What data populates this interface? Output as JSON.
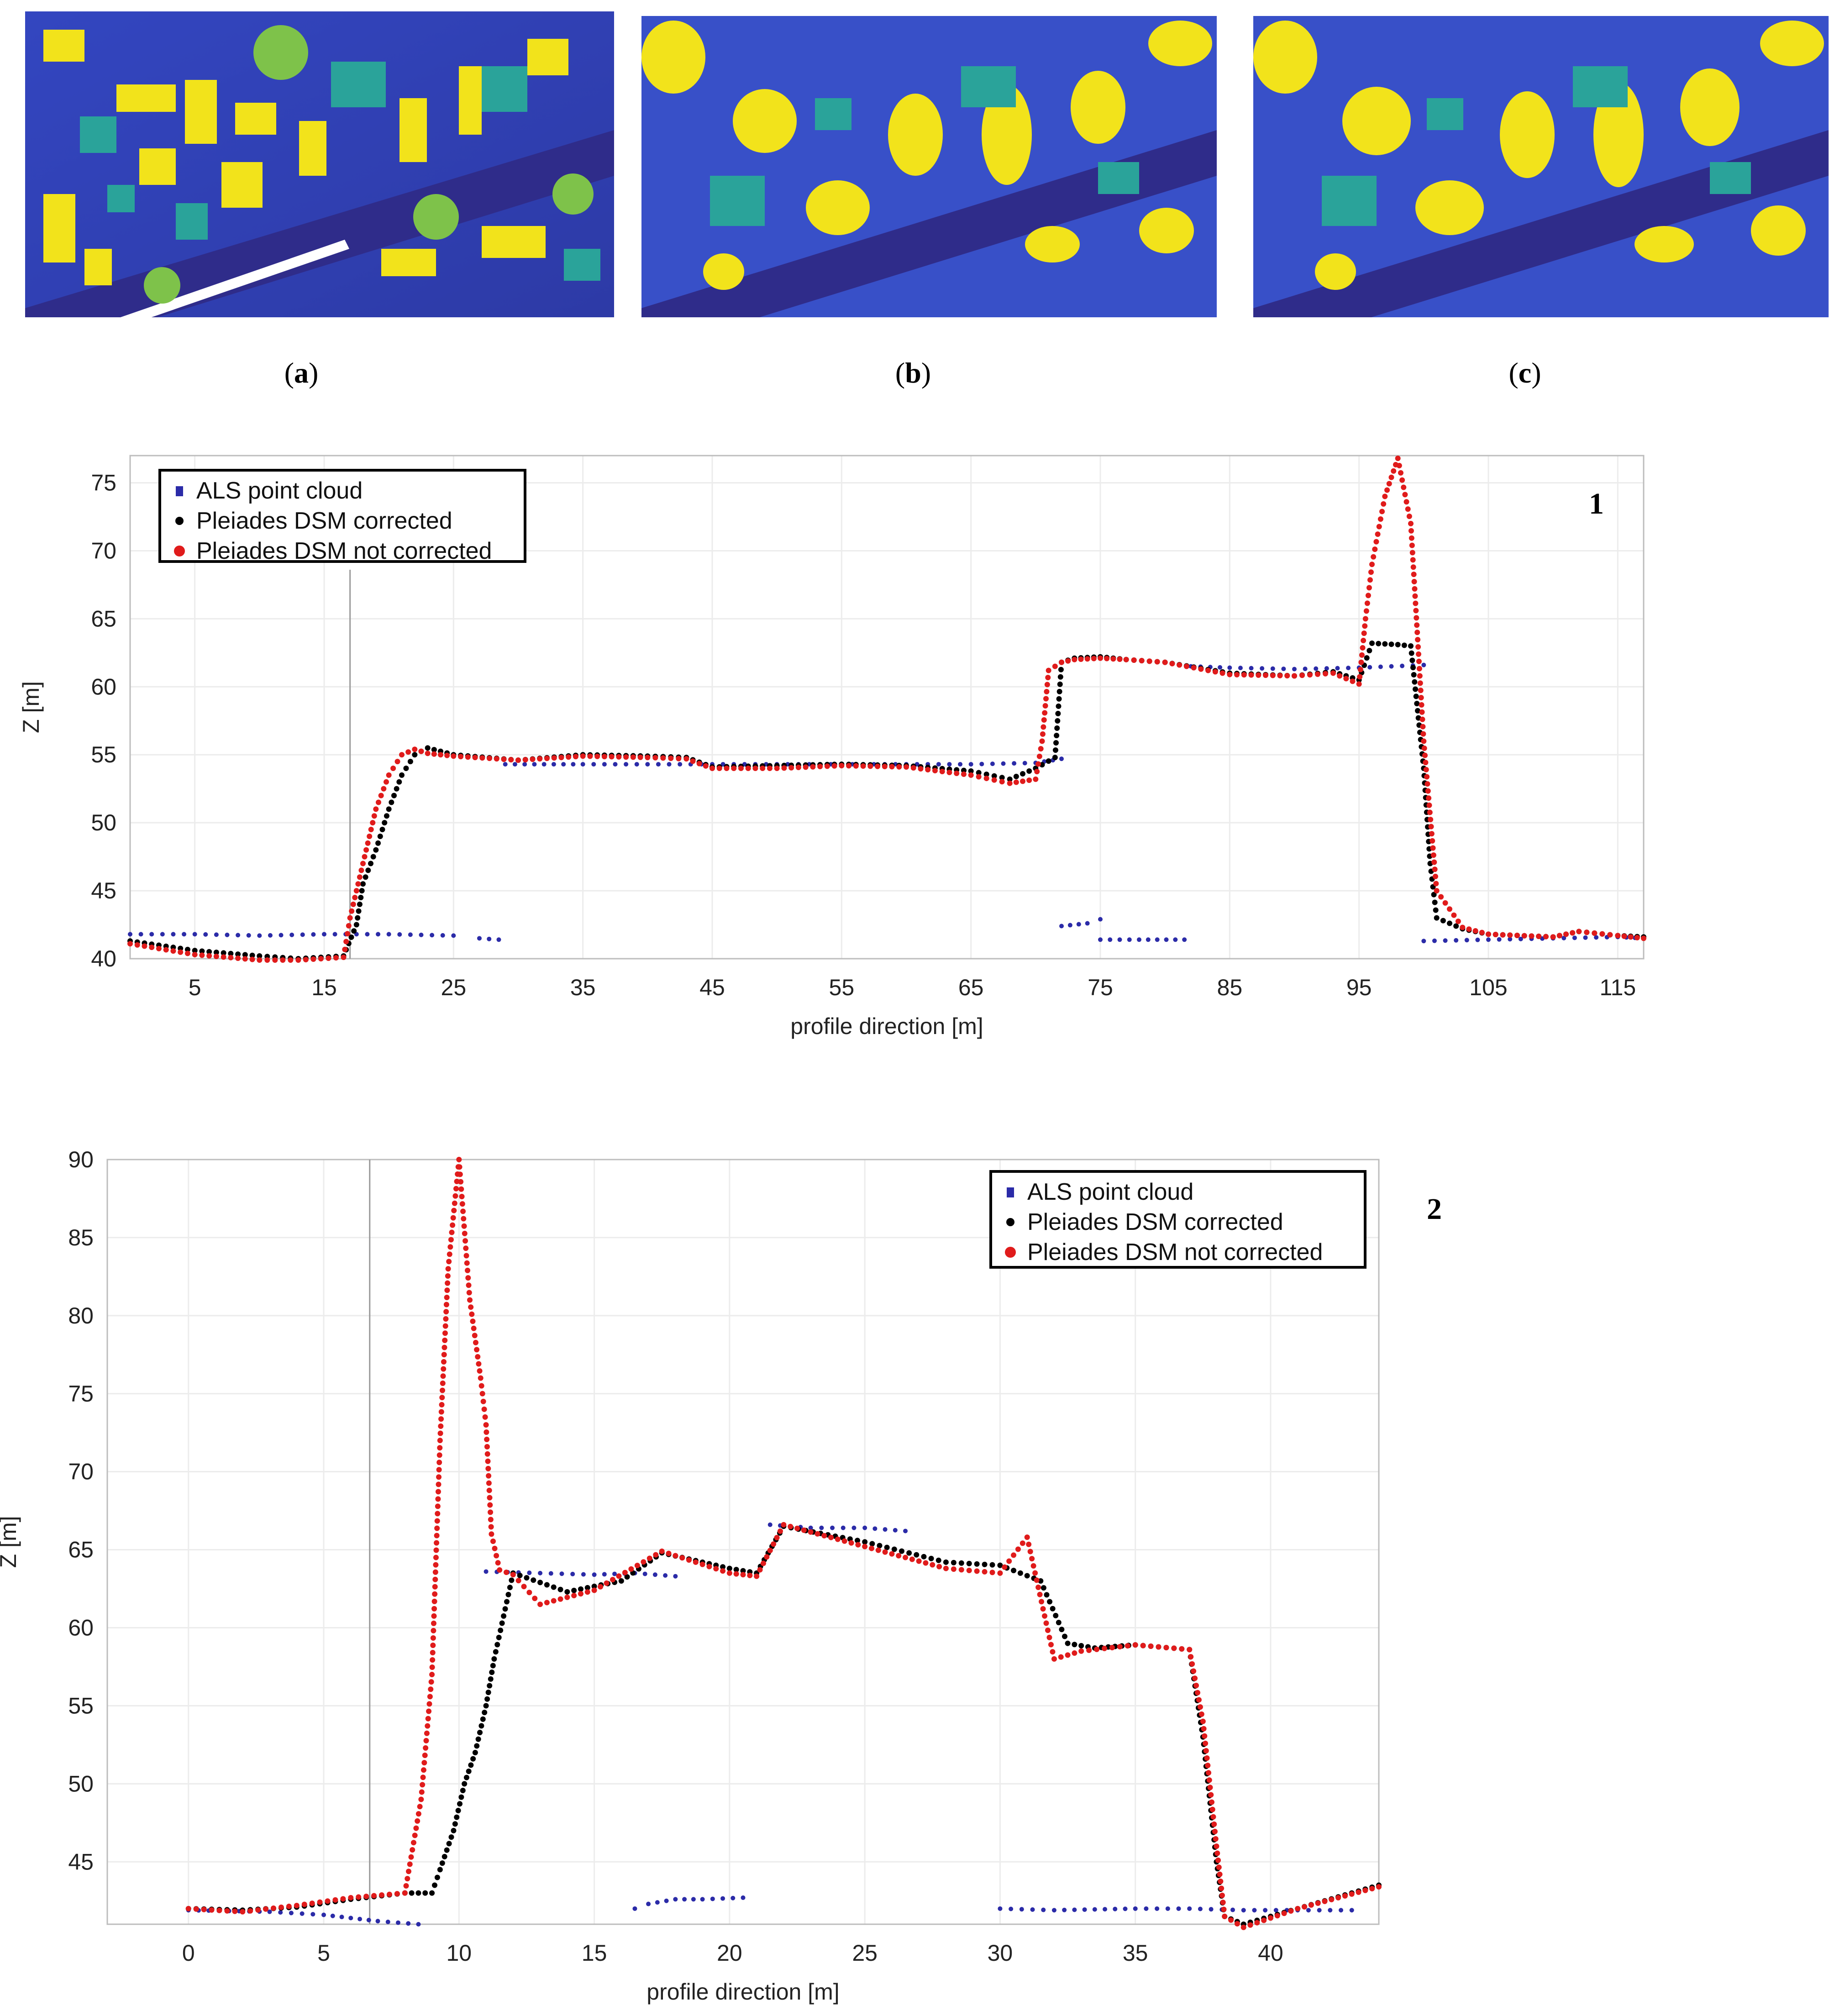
{
  "figure": {
    "panels": [
      {
        "id": "a",
        "label": "a",
        "description_type": "ALS point cloud map"
      },
      {
        "id": "b",
        "label": "b",
        "description_type": "Pleiades DSM corrected"
      },
      {
        "id": "c",
        "label": "c",
        "description_type": "Pleiades DSM not corrected"
      }
    ],
    "colors": {
      "map_low": "#3b3fa8",
      "map_mid": "#2a9fa0",
      "map_high": "#f2e31b",
      "als": "#2b2ba8",
      "corrected": "#000000",
      "not_corrected": "#e01b1b",
      "grid": "#e6e6e6"
    }
  },
  "chart_data": [
    {
      "id": "1",
      "type": "scatter",
      "panel_label": "1",
      "xlabel": "profile direction [m]",
      "ylabel": "Z [m]",
      "xlim": [
        0,
        117
      ],
      "ylim": [
        40,
        77
      ],
      "xticks": [
        5,
        15,
        25,
        35,
        45,
        55,
        65,
        75,
        85,
        95,
        105,
        115
      ],
      "yticks": [
        40,
        45,
        50,
        55,
        60,
        65,
        70,
        75
      ],
      "legend_position": "top-left",
      "vline_x": 17,
      "legend": [
        "ALS point cloud",
        "Pleiades DSM corrected",
        "Pleiades DSM not corrected"
      ],
      "series": [
        {
          "name": "ALS point cloud",
          "color": "#2b2ba8",
          "segments": [
            {
              "x": [
                0,
                5,
                10,
                15,
                20,
                25
              ],
              "y": [
                41.8,
                41.8,
                41.7,
                41.8,
                41.8,
                41.7
              ]
            },
            {
              "x": [
                27,
                28.5
              ],
              "y": [
                41.5,
                41.4
              ]
            },
            {
              "x": [
                29,
                35,
                40,
                45,
                50,
                55,
                60,
                65,
                70,
                72
              ],
              "y": [
                54.3,
                54.3,
                54.3,
                54.3,
                54.3,
                54.3,
                54.3,
                54.3,
                54.4,
                54.7
              ]
            },
            {
              "x": [
                72,
                74,
                75
              ],
              "y": [
                42.4,
                42.6,
                42.9
              ]
            },
            {
              "x": [
                75,
                78,
                81.5
              ],
              "y": [
                41.4,
                41.4,
                41.4
              ]
            },
            {
              "x": [
                82,
                85,
                90,
                95,
                100
              ],
              "y": [
                61.5,
                61.4,
                61.3,
                61.4,
                61.6
              ]
            },
            {
              "x": [
                100,
                105,
                110,
                115,
                117
              ],
              "y": [
                41.3,
                41.4,
                41.5,
                41.6,
                41.5
              ]
            }
          ]
        },
        {
          "name": "Pleiades DSM corrected",
          "color": "#000000",
          "segments": [
            {
              "x": [
                0,
                5,
                10,
                13,
                16.5,
                17.5,
                18,
                19,
                20,
                21,
                22,
                23,
                25,
                30,
                35,
                40,
                43,
                45,
                50,
                55,
                60,
                65,
                68,
                70,
                71.5,
                72,
                73,
                75,
                77,
                80,
                85,
                90,
                93,
                95,
                96,
                98,
                99,
                100,
                100.5,
                101,
                103,
                105,
                110,
                112,
                115,
                117
              ],
              "y": [
                41.3,
                40.6,
                40.2,
                40.0,
                40.2,
                42.5,
                45.5,
                48,
                51,
                53.5,
                55,
                55.5,
                55,
                54.6,
                55,
                54.9,
                54.8,
                54.1,
                54.2,
                54.3,
                54.2,
                53.8,
                53.2,
                54,
                54.8,
                61.8,
                62.1,
                62.2,
                62,
                61.8,
                61,
                60.8,
                61.1,
                60.5,
                63.2,
                63.1,
                63,
                54,
                47,
                43,
                42.2,
                41.8,
                41.6,
                42,
                41.7,
                41.6
              ]
            }
          ]
        },
        {
          "name": "Pleiades DSM not corrected",
          "color": "#e01b1b",
          "segments": [
            {
              "x": [
                0,
                5,
                10,
                13,
                16.5,
                17,
                18,
                19,
                20,
                21,
                22,
                23,
                25,
                30,
                35,
                40,
                43,
                45,
                50,
                55,
                60,
                65,
                68,
                70,
                70.5,
                71,
                72,
                73,
                75,
                77,
                80,
                85,
                90,
                93,
                95,
                95.5,
                96,
                97,
                98,
                99,
                100,
                101,
                103,
                105,
                110,
                112,
                115,
                117
              ],
              "y": [
                41.1,
                40.3,
                39.9,
                39.9,
                40.1,
                43,
                47,
                51,
                53.5,
                55,
                55.4,
                55.1,
                54.9,
                54.6,
                54.9,
                54.8,
                54.7,
                54,
                54,
                54.2,
                54.1,
                53.5,
                52.9,
                53.2,
                56,
                61.2,
                61.8,
                62,
                62.1,
                62,
                61.8,
                60.9,
                60.8,
                61,
                60.2,
                65,
                69,
                74,
                76.8,
                72,
                56,
                45,
                42.3,
                41.8,
                41.6,
                42,
                41.7,
                41.5
              ]
            }
          ]
        }
      ]
    },
    {
      "id": "2",
      "type": "scatter",
      "panel_label": "2",
      "xlabel": "profile direction [m]",
      "ylabel": "Z [m]",
      "xlim": [
        -3,
        44
      ],
      "ylim": [
        41,
        90
      ],
      "xticks": [
        0,
        5,
        10,
        15,
        20,
        25,
        30,
        35,
        40
      ],
      "yticks": [
        45,
        50,
        55,
        60,
        65,
        70,
        75,
        80,
        85,
        90
      ],
      "legend_position": "top-right",
      "vline_x": 6.7,
      "legend": [
        "ALS point cloud",
        "Pleiades DSM corrected",
        "Pleiades DSM not corrected"
      ],
      "series": [
        {
          "name": "ALS point cloud",
          "color": "#2b2ba8",
          "segments": [
            {
              "x": [
                0,
                3,
                5,
                6,
                7,
                8.5
              ],
              "y": [
                41.9,
                41.8,
                41.6,
                41.4,
                41.2,
                41.0
              ]
            },
            {
              "x": [
                11,
                13,
                15,
                16.5,
                18
              ],
              "y": [
                63.6,
                63.5,
                63.4,
                63.5,
                63.3
              ]
            },
            {
              "x": [
                16.5,
                17,
                18,
                19,
                20.5
              ],
              "y": [
                42,
                42.3,
                42.6,
                42.6,
                42.7
              ]
            },
            {
              "x": [
                21.5,
                23,
                25,
                26.5
              ],
              "y": [
                66.6,
                66.4,
                66.4,
                66.2
              ]
            },
            {
              "x": [
                30,
                32,
                35,
                37,
                39,
                41,
                43
              ],
              "y": [
                42,
                41.9,
                42,
                42,
                41.9,
                41.9,
                41.9
              ]
            }
          ]
        },
        {
          "name": "Pleiades DSM corrected",
          "color": "#000000",
          "segments": [
            {
              "x": [
                0,
                2,
                4,
                6,
                8,
                9,
                9.3,
                9.8,
                10.2,
                10.6,
                11,
                11.3,
                12,
                14,
                16,
                17.5,
                20,
                21,
                22,
                25,
                28,
                30,
                31.5,
                32.5,
                33.5,
                35,
                37,
                37.5,
                38,
                38.3,
                39,
                41,
                44
              ],
              "y": [
                42,
                41.9,
                42.1,
                42.6,
                43,
                43,
                44.5,
                47,
                50,
                52,
                55,
                58,
                63.5,
                62.3,
                63,
                64.8,
                63.8,
                63.5,
                66.5,
                65.5,
                64.2,
                64,
                63,
                59,
                58.7,
                58.9,
                58.6,
                53,
                45,
                41.5,
                41,
                42,
                43.5
              ]
            }
          ]
        },
        {
          "name": "Pleiades DSM not corrected",
          "color": "#e01b1b",
          "segments": [
            {
              "x": [
                0,
                2,
                4,
                6,
                8,
                8.6,
                9,
                9.3,
                9.6,
                10,
                10.4,
                10.8,
                11,
                11.2,
                11.5,
                12,
                13,
                15,
                17.5,
                20,
                21,
                22,
                25,
                28,
                30,
                31,
                32,
                33,
                35,
                37,
                37.5,
                38,
                38.3,
                39,
                41,
                44
              ],
              "y": [
                42,
                41.8,
                42.2,
                42.7,
                43,
                49,
                57,
                72,
                83,
                90,
                81,
                76,
                73,
                66,
                63.7,
                63.4,
                61.5,
                62.4,
                64.9,
                63.5,
                63.3,
                66.6,
                65.2,
                63.8,
                63.5,
                65.8,
                58,
                58.5,
                58.9,
                58.6,
                54,
                46,
                41.5,
                40.8,
                42,
                43.4
              ]
            }
          ]
        }
      ]
    }
  ]
}
